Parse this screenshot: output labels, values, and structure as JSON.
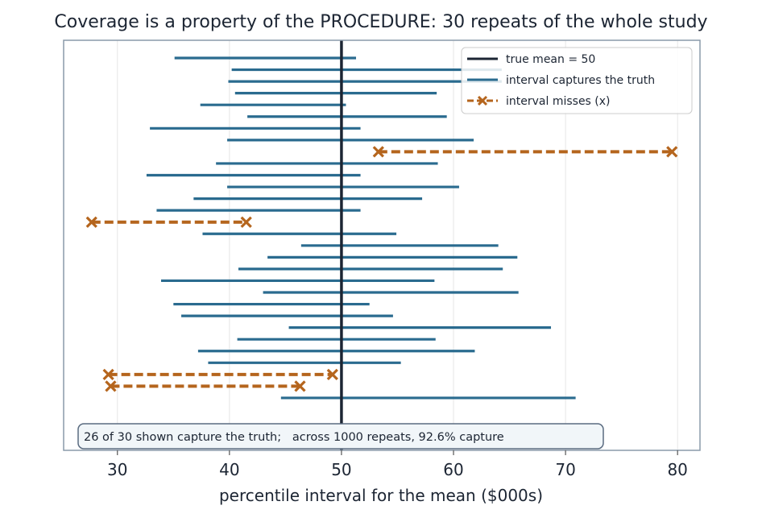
{
  "chart_data": {
    "type": "interval",
    "title": "Coverage is a property of the PROCEDURE: 30 repeats of the whole study",
    "xlabel": "percentile interval for the mean ($000s)",
    "ylabel": "",
    "xlim": [
      25.2,
      82.0
    ],
    "xticks": [
      30,
      40,
      50,
      60,
      70,
      80
    ],
    "grid": "vertical",
    "true_mean": 50,
    "colors": {
      "capture": "#2a6b8f",
      "miss": "#b5651d",
      "true_mean": "#1c2533",
      "frame": "#8a9aaa",
      "grid": "#e6e6e6",
      "text": "#1c2533"
    },
    "legend": {
      "position": "top-right",
      "entries": [
        {
          "label": "true mean = 50",
          "style": "true_mean"
        },
        {
          "label": "interval captures the truth",
          "style": "capture"
        },
        {
          "label": "interval misses (x)",
          "style": "miss"
        }
      ]
    },
    "annotation": "26 of 30 shown capture the truth;   across 1000 repeats, 92.6% capture",
    "intervals": [
      {
        "repeat": 1,
        "lower": 35.1,
        "upper": 51.3,
        "captures": true
      },
      {
        "repeat": 2,
        "lower": 40.2,
        "upper": 64.3,
        "captures": true
      },
      {
        "repeat": 3,
        "lower": 39.9,
        "upper": 64.3,
        "captures": true
      },
      {
        "repeat": 4,
        "lower": 40.5,
        "upper": 58.5,
        "captures": true
      },
      {
        "repeat": 5,
        "lower": 37.4,
        "upper": 50.4,
        "captures": true
      },
      {
        "repeat": 6,
        "lower": 41.6,
        "upper": 59.4,
        "captures": true
      },
      {
        "repeat": 7,
        "lower": 32.9,
        "upper": 51.7,
        "captures": true
      },
      {
        "repeat": 8,
        "lower": 39.8,
        "upper": 61.8,
        "captures": true
      },
      {
        "repeat": 9,
        "lower": 53.3,
        "upper": 79.5,
        "captures": false
      },
      {
        "repeat": 10,
        "lower": 38.8,
        "upper": 58.6,
        "captures": true
      },
      {
        "repeat": 11,
        "lower": 32.6,
        "upper": 51.7,
        "captures": true
      },
      {
        "repeat": 12,
        "lower": 39.8,
        "upper": 60.5,
        "captures": true
      },
      {
        "repeat": 13,
        "lower": 36.8,
        "upper": 57.2,
        "captures": true
      },
      {
        "repeat": 14,
        "lower": 33.5,
        "upper": 51.7,
        "captures": true
      },
      {
        "repeat": 15,
        "lower": 27.7,
        "upper": 41.5,
        "captures": false
      },
      {
        "repeat": 16,
        "lower": 37.6,
        "upper": 54.9,
        "captures": true
      },
      {
        "repeat": 17,
        "lower": 46.4,
        "upper": 64.0,
        "captures": true
      },
      {
        "repeat": 18,
        "lower": 43.4,
        "upper": 65.7,
        "captures": true
      },
      {
        "repeat": 19,
        "lower": 40.8,
        "upper": 64.4,
        "captures": true
      },
      {
        "repeat": 20,
        "lower": 33.9,
        "upper": 58.3,
        "captures": true
      },
      {
        "repeat": 21,
        "lower": 43.0,
        "upper": 65.8,
        "captures": true
      },
      {
        "repeat": 22,
        "lower": 35.0,
        "upper": 52.5,
        "captures": true
      },
      {
        "repeat": 23,
        "lower": 35.7,
        "upper": 54.6,
        "captures": true
      },
      {
        "repeat": 24,
        "lower": 45.3,
        "upper": 68.7,
        "captures": true
      },
      {
        "repeat": 25,
        "lower": 40.7,
        "upper": 58.4,
        "captures": true
      },
      {
        "repeat": 26,
        "lower": 37.2,
        "upper": 61.9,
        "captures": true
      },
      {
        "repeat": 27,
        "lower": 38.1,
        "upper": 55.3,
        "captures": true
      },
      {
        "repeat": 28,
        "lower": 29.2,
        "upper": 49.2,
        "captures": false
      },
      {
        "repeat": 29,
        "lower": 29.4,
        "upper": 46.3,
        "captures": false
      },
      {
        "repeat": 30,
        "lower": 44.6,
        "upper": 70.9,
        "captures": true
      }
    ]
  }
}
